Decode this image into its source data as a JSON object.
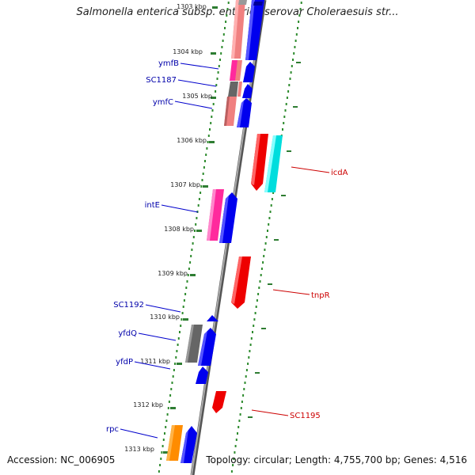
{
  "title": "Salmonella enterica subsp. enterica serovar Choleraesuis str...",
  "accession_text": "Accession: NC_006905",
  "topology_text": "Topology: circular; Length: 4,755,700 bp; Genes: 4,516",
  "colors": {
    "cds_forward": "#0000ee",
    "cds_reverse": "#ee0000",
    "pink": "#ff2a9d",
    "salmon": "#f08080",
    "gray": "#666666",
    "cyan": "#00dddd",
    "orange": "#ff8c00",
    "label_left": "#0000aa",
    "label_right": "#cc0000",
    "dotted_ring": "#008000",
    "backbone": "#888888"
  },
  "kbp_labels": [
    "1303 kbp",
    "1304 kbp",
    "1305 kbp",
    "1306 kbp",
    "1307 kbp",
    "1308 kbp",
    "1309 kbp",
    "1310 kbp",
    "1311 kbp",
    "1312 kbp",
    "1313 kbp"
  ],
  "gene_labels_left": [
    "ymfB",
    "SC1187",
    "ymfC",
    "intE",
    "SC1192",
    "yfdQ",
    "yfdP",
    "rpc"
  ],
  "gene_labels_right": [
    "icdA",
    "tnpR",
    "SC1195"
  ]
}
